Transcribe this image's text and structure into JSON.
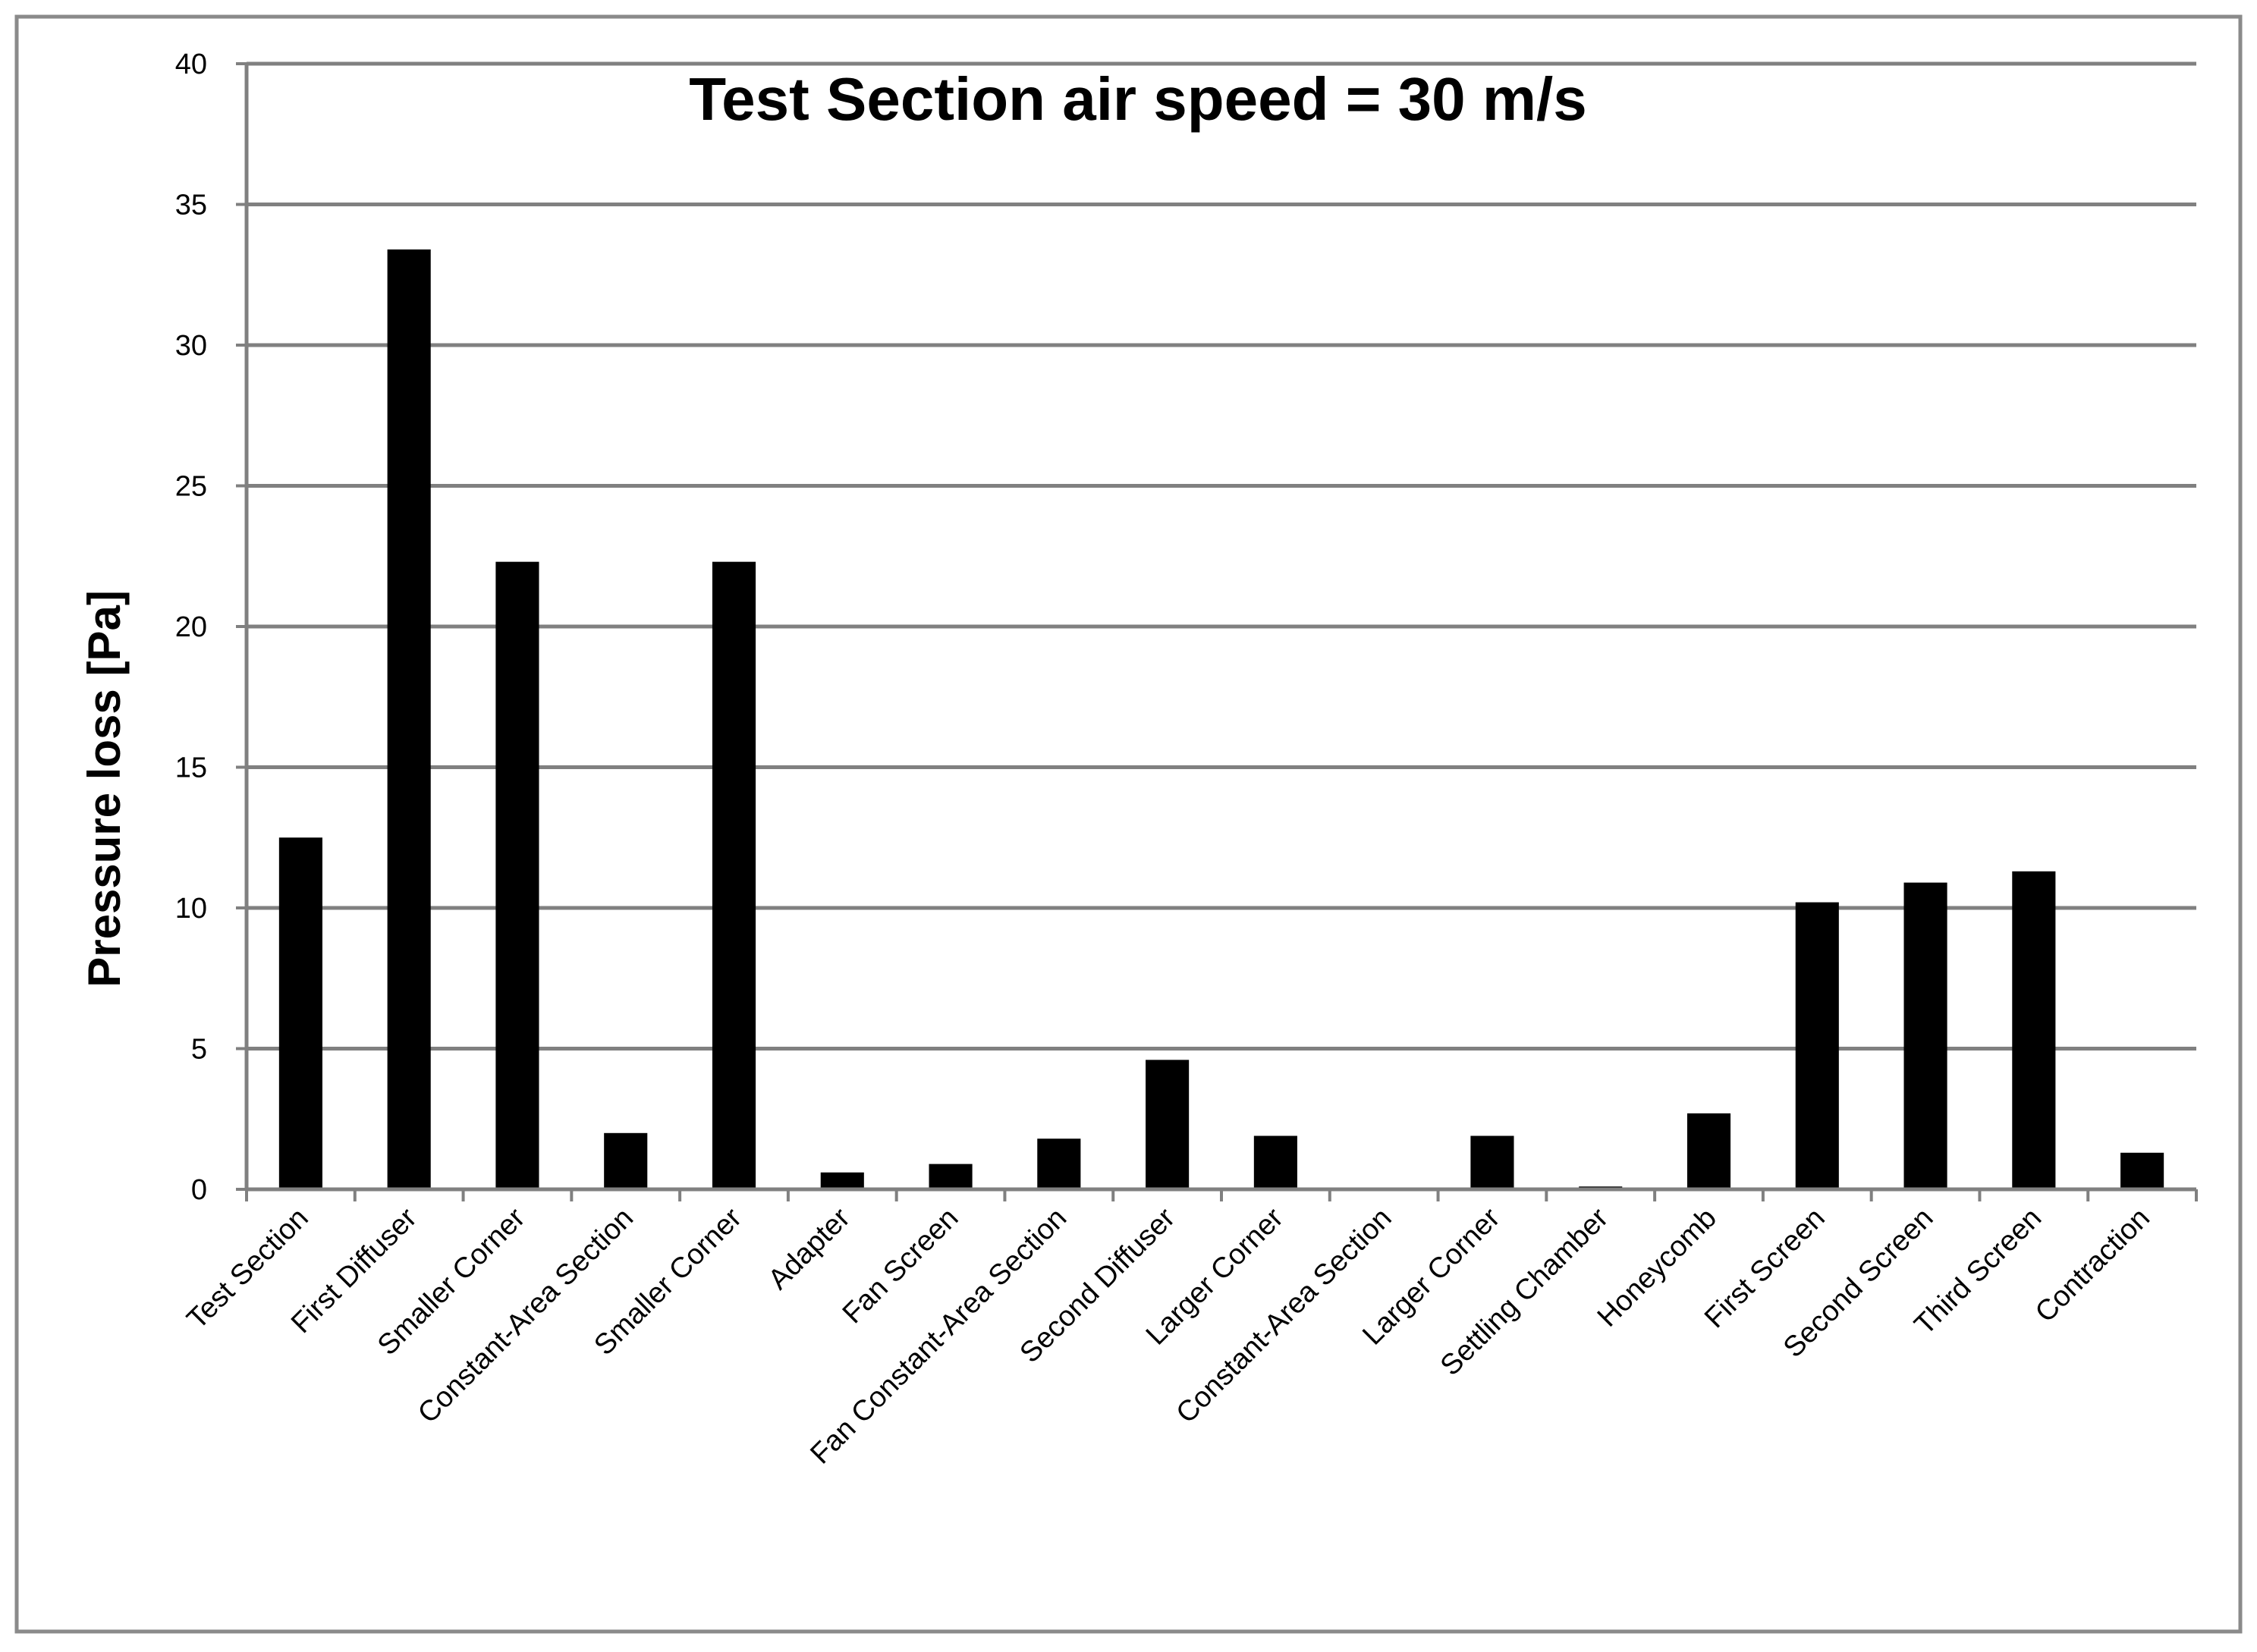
{
  "chart_data": {
    "type": "bar",
    "title": "Test Section air speed = 30 m/s",
    "xlabel": "",
    "ylabel": "Pressure loss [Pa]",
    "ylim": [
      0,
      40
    ],
    "yticks": [
      0,
      5,
      10,
      15,
      20,
      25,
      30,
      35,
      40
    ],
    "grid": true,
    "legend": "none",
    "bar_color": "#000000",
    "grid_color": "#808080",
    "categories": [
      "Test Section",
      "First Diffuser",
      "Smaller Corner",
      "Constant-Area Section",
      "Smaller Corner",
      "Adapter",
      "Fan Screen",
      "Fan Constant-Area Section",
      "Second Diffuser",
      "Larger Corner",
      "Constant-Area Section",
      "Larger Corner",
      "Settling Chamber",
      "Honeycomb",
      "First Screen",
      "Second Screen",
      "Third Screen",
      "Contraction"
    ],
    "values": [
      12.5,
      33.4,
      22.3,
      2.0,
      22.3,
      0.6,
      0.9,
      1.8,
      4.6,
      1.9,
      0.0,
      1.9,
      0.1,
      2.7,
      10.2,
      10.9,
      11.3,
      1.3
    ]
  }
}
